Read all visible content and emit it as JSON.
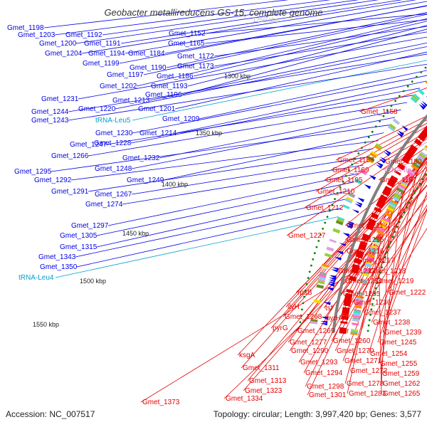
{
  "title": "Geobacter metallireducens GS-15, complete genome",
  "footer": {
    "accession": "Accession: NC_007517",
    "topology": "Topology: circular; Length: 3,997,420 bp; Genes: 3,577"
  },
  "colors": {
    "forward": "#0000e6",
    "reverse": "#e60000",
    "backbone": "#808080",
    "trna": "#00a0d0",
    "trna_reverse": "#e878c0",
    "tick": "#008000"
  },
  "scale_labels": [
    "1250 kbp",
    "1300 kbp",
    "1350 kbp",
    "1400 kbp",
    "1450 kbp",
    "1500 kbp",
    "1550 kbp"
  ],
  "forward_labels": [
    "Gmet_1198",
    "Gmet_1203",
    "Gmet_1192",
    "Gmet_1200",
    "Gmet_1191",
    "Gmet_1204",
    "Gmet_1194",
    "Gmet_1199",
    "Gmet_1184",
    "Gmet_1190",
    "Gmet_1197",
    "Gmet_1202",
    "Gmet_1186",
    "Gmet_1193",
    "Gmet_1196",
    "Gmet_1152",
    "Gmet_1165",
    "Gmet_1172",
    "Gmet_1173",
    "Gmet_1231",
    "Gmet_1213",
    "Gmet_1220",
    "Gmet_1201",
    "Gmet_1244",
    "tRNA-Leu5",
    "Gmet_1243",
    "Gmet_1209",
    "Gmet_1230",
    "Gmet_1214",
    "Gmet_1228",
    "Gmet_1247",
    "Gmet_1266",
    "Gmet_1232",
    "Gmet_1248",
    "Gmet_1295",
    "Gmet_1249",
    "Gmet_1292",
    "Gmet_1291",
    "Gmet_1267",
    "Gmet_1274",
    "Gmet_1297",
    "Gmet_1305",
    "Gmet_1315",
    "Gmet_1343",
    "Gmet_1350",
    "tRNA-Leu4"
  ],
  "reverse_labels": [
    "Gmet_1158",
    "Gmet_1188",
    "Gmet_1180",
    "Gmet_1189",
    "tRNA-Ile1",
    "Gmet_1195",
    "Gmet_1187",
    "Gmet_1210",
    "Gmet_1212",
    "Gmet_1211",
    "Gmet_1227",
    "Gmet_1215",
    "Gmet_1216",
    "Gmet_1217",
    "Gmet_1233",
    "Gmet_1218",
    "Gmet_1234",
    "Gmet_1219",
    "Gmet_1222",
    "rpsB",
    "Gmet_1235",
    "Gmet_1236",
    "tsf",
    "Gmet_1237",
    "ilvH",
    "Gmet_1268",
    "pyrH",
    "Gmet_1238",
    "pyrG",
    "Gmet_1269",
    "frr",
    "Gmet_1239",
    "Gmet_1277",
    "Gmet_1260",
    "Gmet_1245",
    "Gmet_1290",
    "Gmet_1270",
    "Gmet_1254",
    "ksgA",
    "Gmet_1293",
    "Gmet_1271",
    "Gmet_1255",
    "Gmet_1311",
    "Gmet_1294",
    "Gmet_1272",
    "Gmet_1259",
    "Gmet_1313",
    "Gmet_1298",
    "Gmet_1278",
    "Gmet_1262",
    "Gmet_1323",
    "Gmet_1301",
    "Gmet_1283",
    "Gmet_1265",
    "Gmet_1334",
    "Gmet_1373"
  ]
}
